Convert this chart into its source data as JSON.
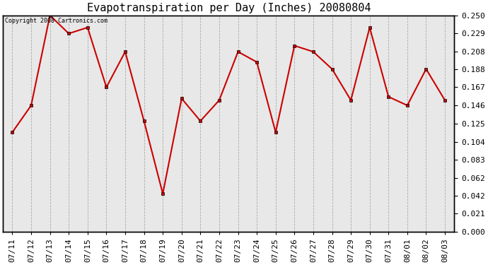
{
  "title": "Evapotranspiration per Day (Inches) 20080804",
  "copyright": "Copyright 2008 Cartronics.com",
  "dates": [
    "07/11",
    "07/12",
    "07/13",
    "07/14",
    "07/15",
    "07/16",
    "07/17",
    "07/18",
    "07/19",
    "07/20",
    "07/21",
    "07/22",
    "07/23",
    "07/24",
    "07/25",
    "07/26",
    "07/27",
    "07/28",
    "07/29",
    "07/30",
    "07/31",
    "08/01",
    "08/02",
    "08/03"
  ],
  "values": [
    0.115,
    0.146,
    0.25,
    0.229,
    0.236,
    0.167,
    0.208,
    0.128,
    0.044,
    0.154,
    0.128,
    0.152,
    0.208,
    0.196,
    0.115,
    0.215,
    0.208,
    0.188,
    0.152,
    0.236,
    0.156,
    0.146,
    0.188,
    0.152
  ],
  "yticks": [
    0.0,
    0.021,
    0.042,
    0.062,
    0.083,
    0.104,
    0.125,
    0.146,
    0.167,
    0.188,
    0.208,
    0.229,
    0.25
  ],
  "line_color": "#cc0000",
  "marker_color": "#cc0000",
  "bg_color": "#ffffff",
  "plot_bg_color": "#e8e8e8",
  "grid_color": "#aaaaaa",
  "title_fontsize": 11,
  "copyright_fontsize": 6,
  "tick_fontsize": 8,
  "ylim_min": 0.0,
  "ylim_max": 0.25
}
